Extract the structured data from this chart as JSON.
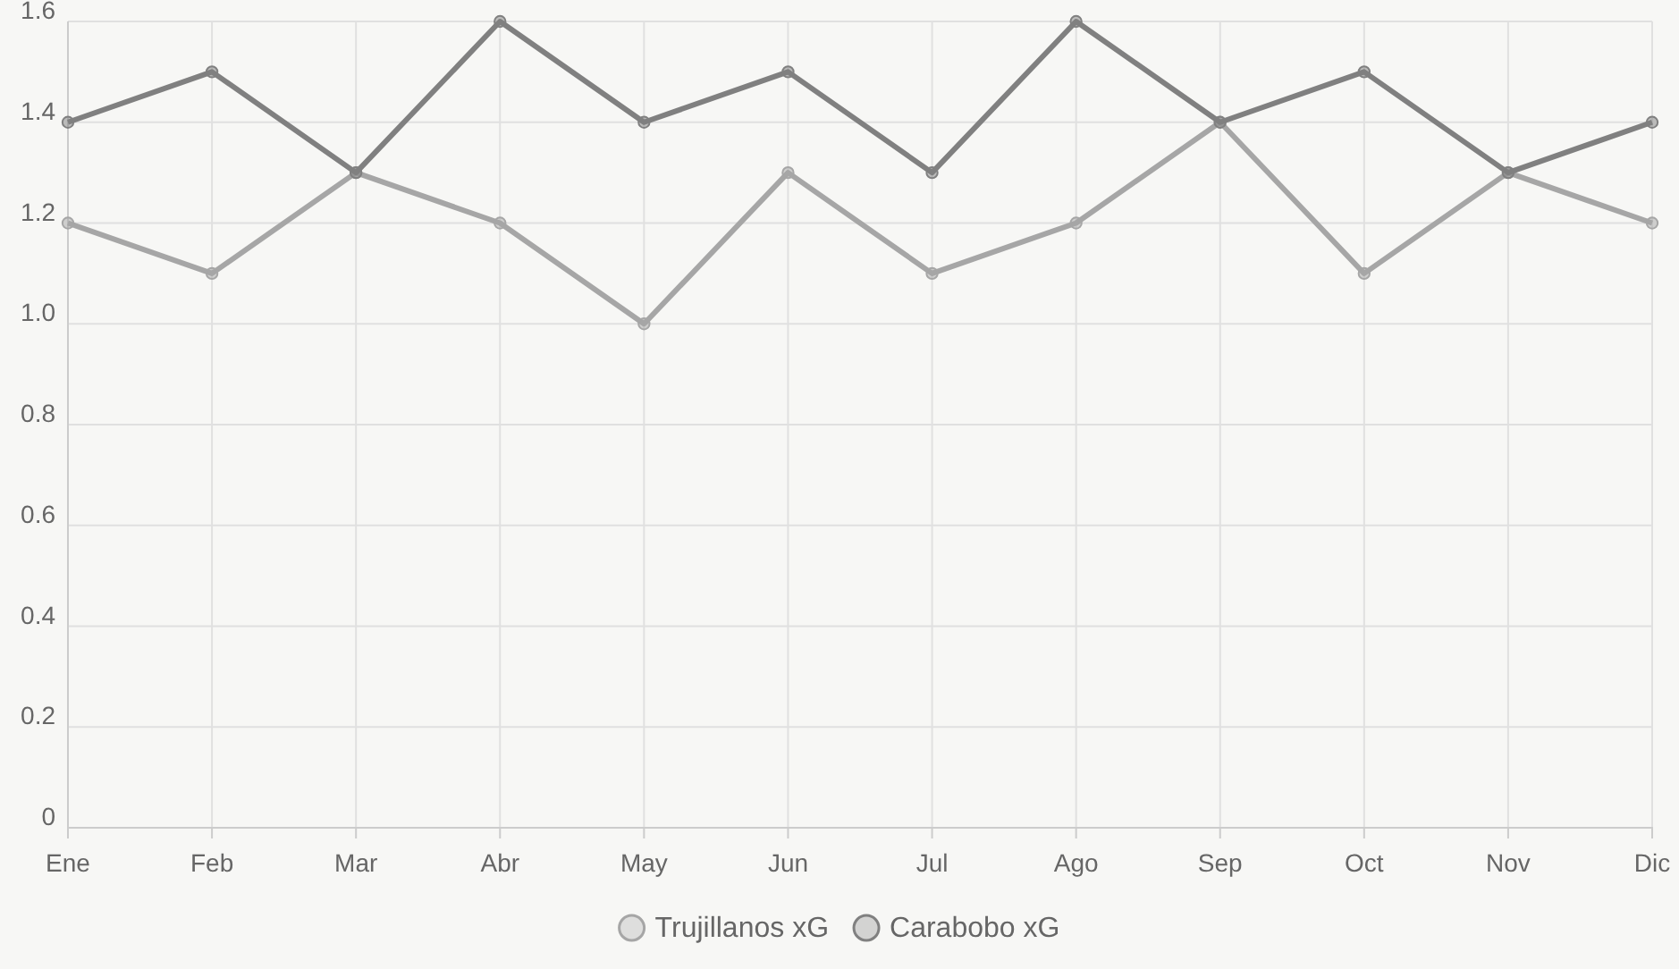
{
  "chart_data": {
    "type": "line",
    "categories": [
      "Ene",
      "Feb",
      "Mar",
      "Abr",
      "May",
      "Jun",
      "Jul",
      "Ago",
      "Sep",
      "Oct",
      "Nov",
      "Dic"
    ],
    "series": [
      {
        "name": "Trujillanos xG",
        "color": "#a6a6a6",
        "values": [
          1.2,
          1.1,
          1.3,
          1.2,
          1.0,
          1.3,
          1.1,
          1.2,
          1.4,
          1.1,
          1.3,
          1.2
        ]
      },
      {
        "name": "Carabobo xG",
        "color": "#808080",
        "values": [
          1.4,
          1.5,
          1.3,
          1.6,
          1.4,
          1.5,
          1.3,
          1.6,
          1.4,
          1.5,
          1.3,
          1.4
        ]
      }
    ],
    "ylim": [
      0,
      1.6
    ],
    "yticks": [
      0,
      0.2,
      0.4,
      0.6,
      0.8,
      {
        "value": 1,
        "label": "1.0"
      },
      1.2,
      1.4,
      1.6
    ],
    "grid": true,
    "legend": "bottom",
    "marker": "circle",
    "line_style": "solid"
  }
}
